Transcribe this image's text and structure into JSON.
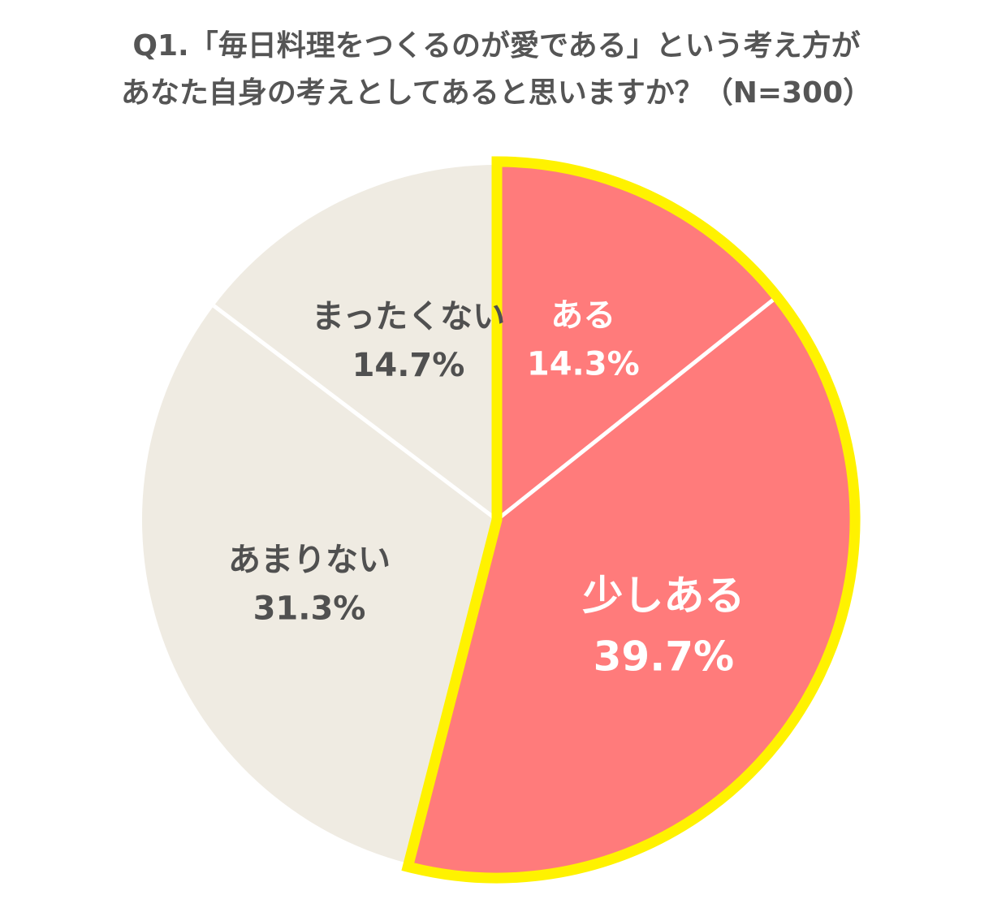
{
  "chart_data": {
    "type": "pie",
    "title_lines": [
      "Q1.「毎日料理をつくるのが愛である」という考え方が",
      "あなた自身の考えとしてあると思いますか？（N=300）"
    ],
    "slices": [
      {
        "label": "ある",
        "value": 14.3,
        "value_label": "14.3%",
        "color": "#FF7B7B",
        "text_color": "#FFFFFF"
      },
      {
        "label": "少しある",
        "value": 39.7,
        "value_label": "39.7%",
        "color": "#FF7B7B",
        "text_color": "#FFFFFF"
      },
      {
        "label": "あまりない",
        "value": 31.3,
        "value_label": "31.3%",
        "color": "#EFEBE2",
        "text_color": "#505050"
      },
      {
        "label": "まったくない",
        "value": 14.7,
        "value_label": "14.7%",
        "color": "#EFEBE2",
        "text_color": "#505050"
      }
    ],
    "start_angle": "12 o'clock",
    "direction": "clockwise",
    "highlight": {
      "slices": [
        "ある",
        "少しある"
      ],
      "outline_color": "#FFF200"
    },
    "separator_color": "#FFFFFF"
  }
}
